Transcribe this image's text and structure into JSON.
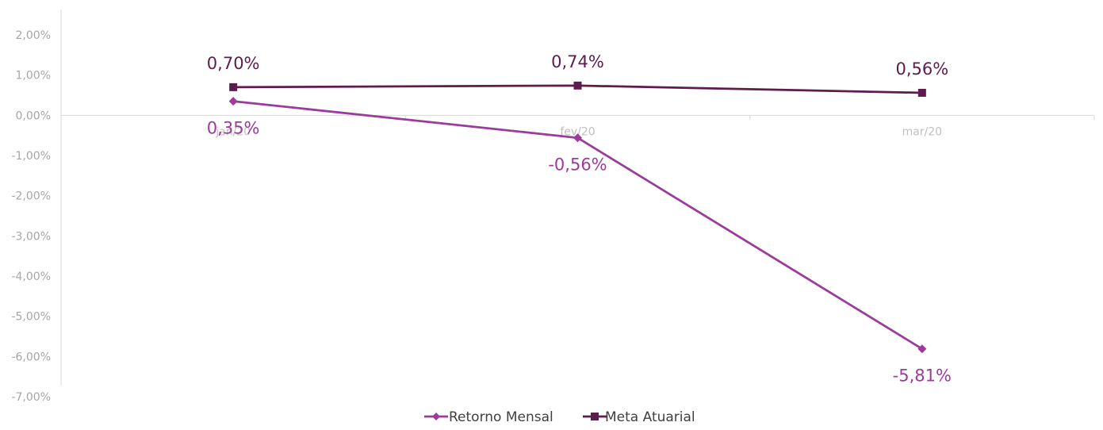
{
  "chart_data": {
    "type": "line",
    "title": "",
    "xlabel": "",
    "ylabel": "",
    "categories": [
      "jan/20",
      "fev/20",
      "mar/20"
    ],
    "y_ticks": [
      "2,00%",
      "1,00%",
      "0,00%",
      "-1,00%",
      "-2,00%",
      "-3,00%",
      "-4,00%",
      "-5,00%",
      "-6,00%",
      "-7,00%"
    ],
    "ylim": [
      -7,
      2
    ],
    "grid": false,
    "legend_position": "bottom",
    "series": [
      {
        "name": "Retorno Mensal",
        "values": [
          0.35,
          -0.56,
          -5.81
        ],
        "labels": [
          "0,35%",
          "-0,56%",
          "-5,81%"
        ],
        "color": "#9c3b9c",
        "marker": "diamond",
        "label_position": "below"
      },
      {
        "name": "Meta Atuarial",
        "values": [
          0.7,
          0.74,
          0.56
        ],
        "labels": [
          "0,70%",
          "0,74%",
          "0,56%"
        ],
        "color": "#5e1c4e",
        "marker": "square",
        "label_position": "above"
      }
    ]
  }
}
